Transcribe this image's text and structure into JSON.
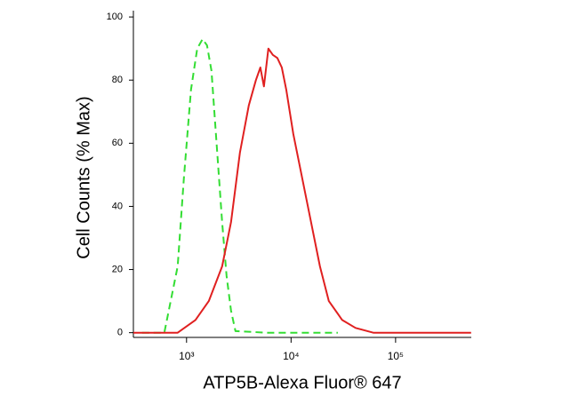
{
  "chart_data": {
    "type": "line",
    "xlabel": "ATP5B-Alexa Fluor® 647",
    "ylabel": "Cell Counts (% Max)",
    "xscale": "log",
    "xlim": [
      310,
      530000
    ],
    "ylim": [
      -1.5,
      102
    ],
    "xticks": [
      {
        "value": 1000,
        "label": "10³"
      },
      {
        "value": 10000,
        "label": "10⁴"
      },
      {
        "value": 100000,
        "label": "10⁵"
      }
    ],
    "yticks": [
      0,
      20,
      40,
      60,
      80,
      100
    ],
    "series": [
      {
        "color": "#33dd33",
        "dashed": true,
        "x": [
          375,
          613,
          823,
          943,
          1103,
          1265,
          1423,
          1570,
          1731,
          1910,
          2190,
          2415,
          2665,
          2939,
          5835,
          27990
        ],
        "values": [
          0,
          0,
          21,
          49,
          77,
          90,
          93,
          91,
          83,
          63,
          35,
          18,
          7,
          0.5,
          0,
          0
        ]
      },
      {
        "color": "#e02020",
        "dashed": false,
        "x": [
          310,
          823,
          1216,
          1632,
          2190,
          2665,
          3243,
          3945,
          4613,
          5085,
          5498,
          6066,
          6692,
          7387,
          8147,
          8985,
          10500,
          12770,
          15530,
          18900,
          23000,
          30850,
          41400,
          61200,
          528000
        ],
        "values": [
          0,
          0,
          4,
          10,
          21,
          35,
          57,
          72,
          80,
          84,
          78,
          90,
          88,
          87,
          84,
          77,
          63,
          49,
          35,
          21,
          10,
          4,
          1.5,
          0,
          0
        ]
      }
    ]
  }
}
